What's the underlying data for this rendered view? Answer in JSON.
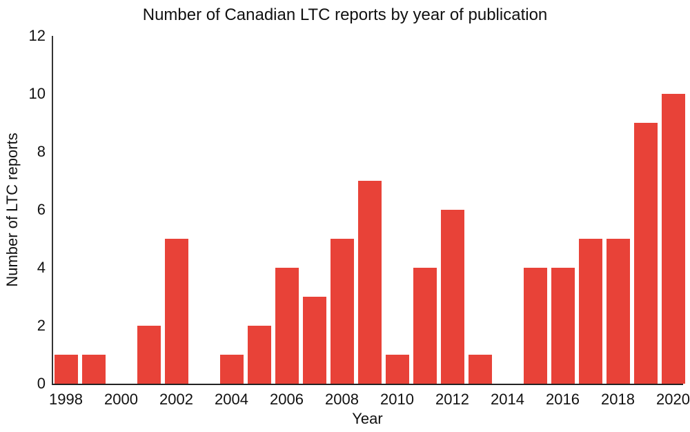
{
  "chart_data": {
    "type": "bar",
    "title": "Number of Canadian LTC reports by year of publication",
    "xlabel": "Year",
    "ylabel": "Number of LTC reports",
    "categories": [
      "1998",
      "1999",
      "2000",
      "2001",
      "2002",
      "2003",
      "2004",
      "2005",
      "2006",
      "2007",
      "2008",
      "2009",
      "2010",
      "2011",
      "2012",
      "2013",
      "2014",
      "2015",
      "2016",
      "2017",
      "2018",
      "2019",
      "2020"
    ],
    "values": [
      1,
      1,
      0,
      2,
      5,
      0,
      1,
      2,
      4,
      3,
      5,
      7,
      1,
      4,
      6,
      1,
      0,
      4,
      4,
      5,
      5,
      9,
      10
    ],
    "ylim": [
      0,
      12
    ],
    "yticks": [
      0,
      2,
      4,
      6,
      8,
      10,
      12
    ],
    "xtick_labels": [
      "1998",
      "2000",
      "2002",
      "2004",
      "2006",
      "2008",
      "2010",
      "2012",
      "2014",
      "2016",
      "2018",
      "2020"
    ],
    "bar_color": "#e84238",
    "axis_color": "#333333",
    "text_color": "#111111",
    "grid": false,
    "legend": "none",
    "background_color": "#ffffff"
  }
}
